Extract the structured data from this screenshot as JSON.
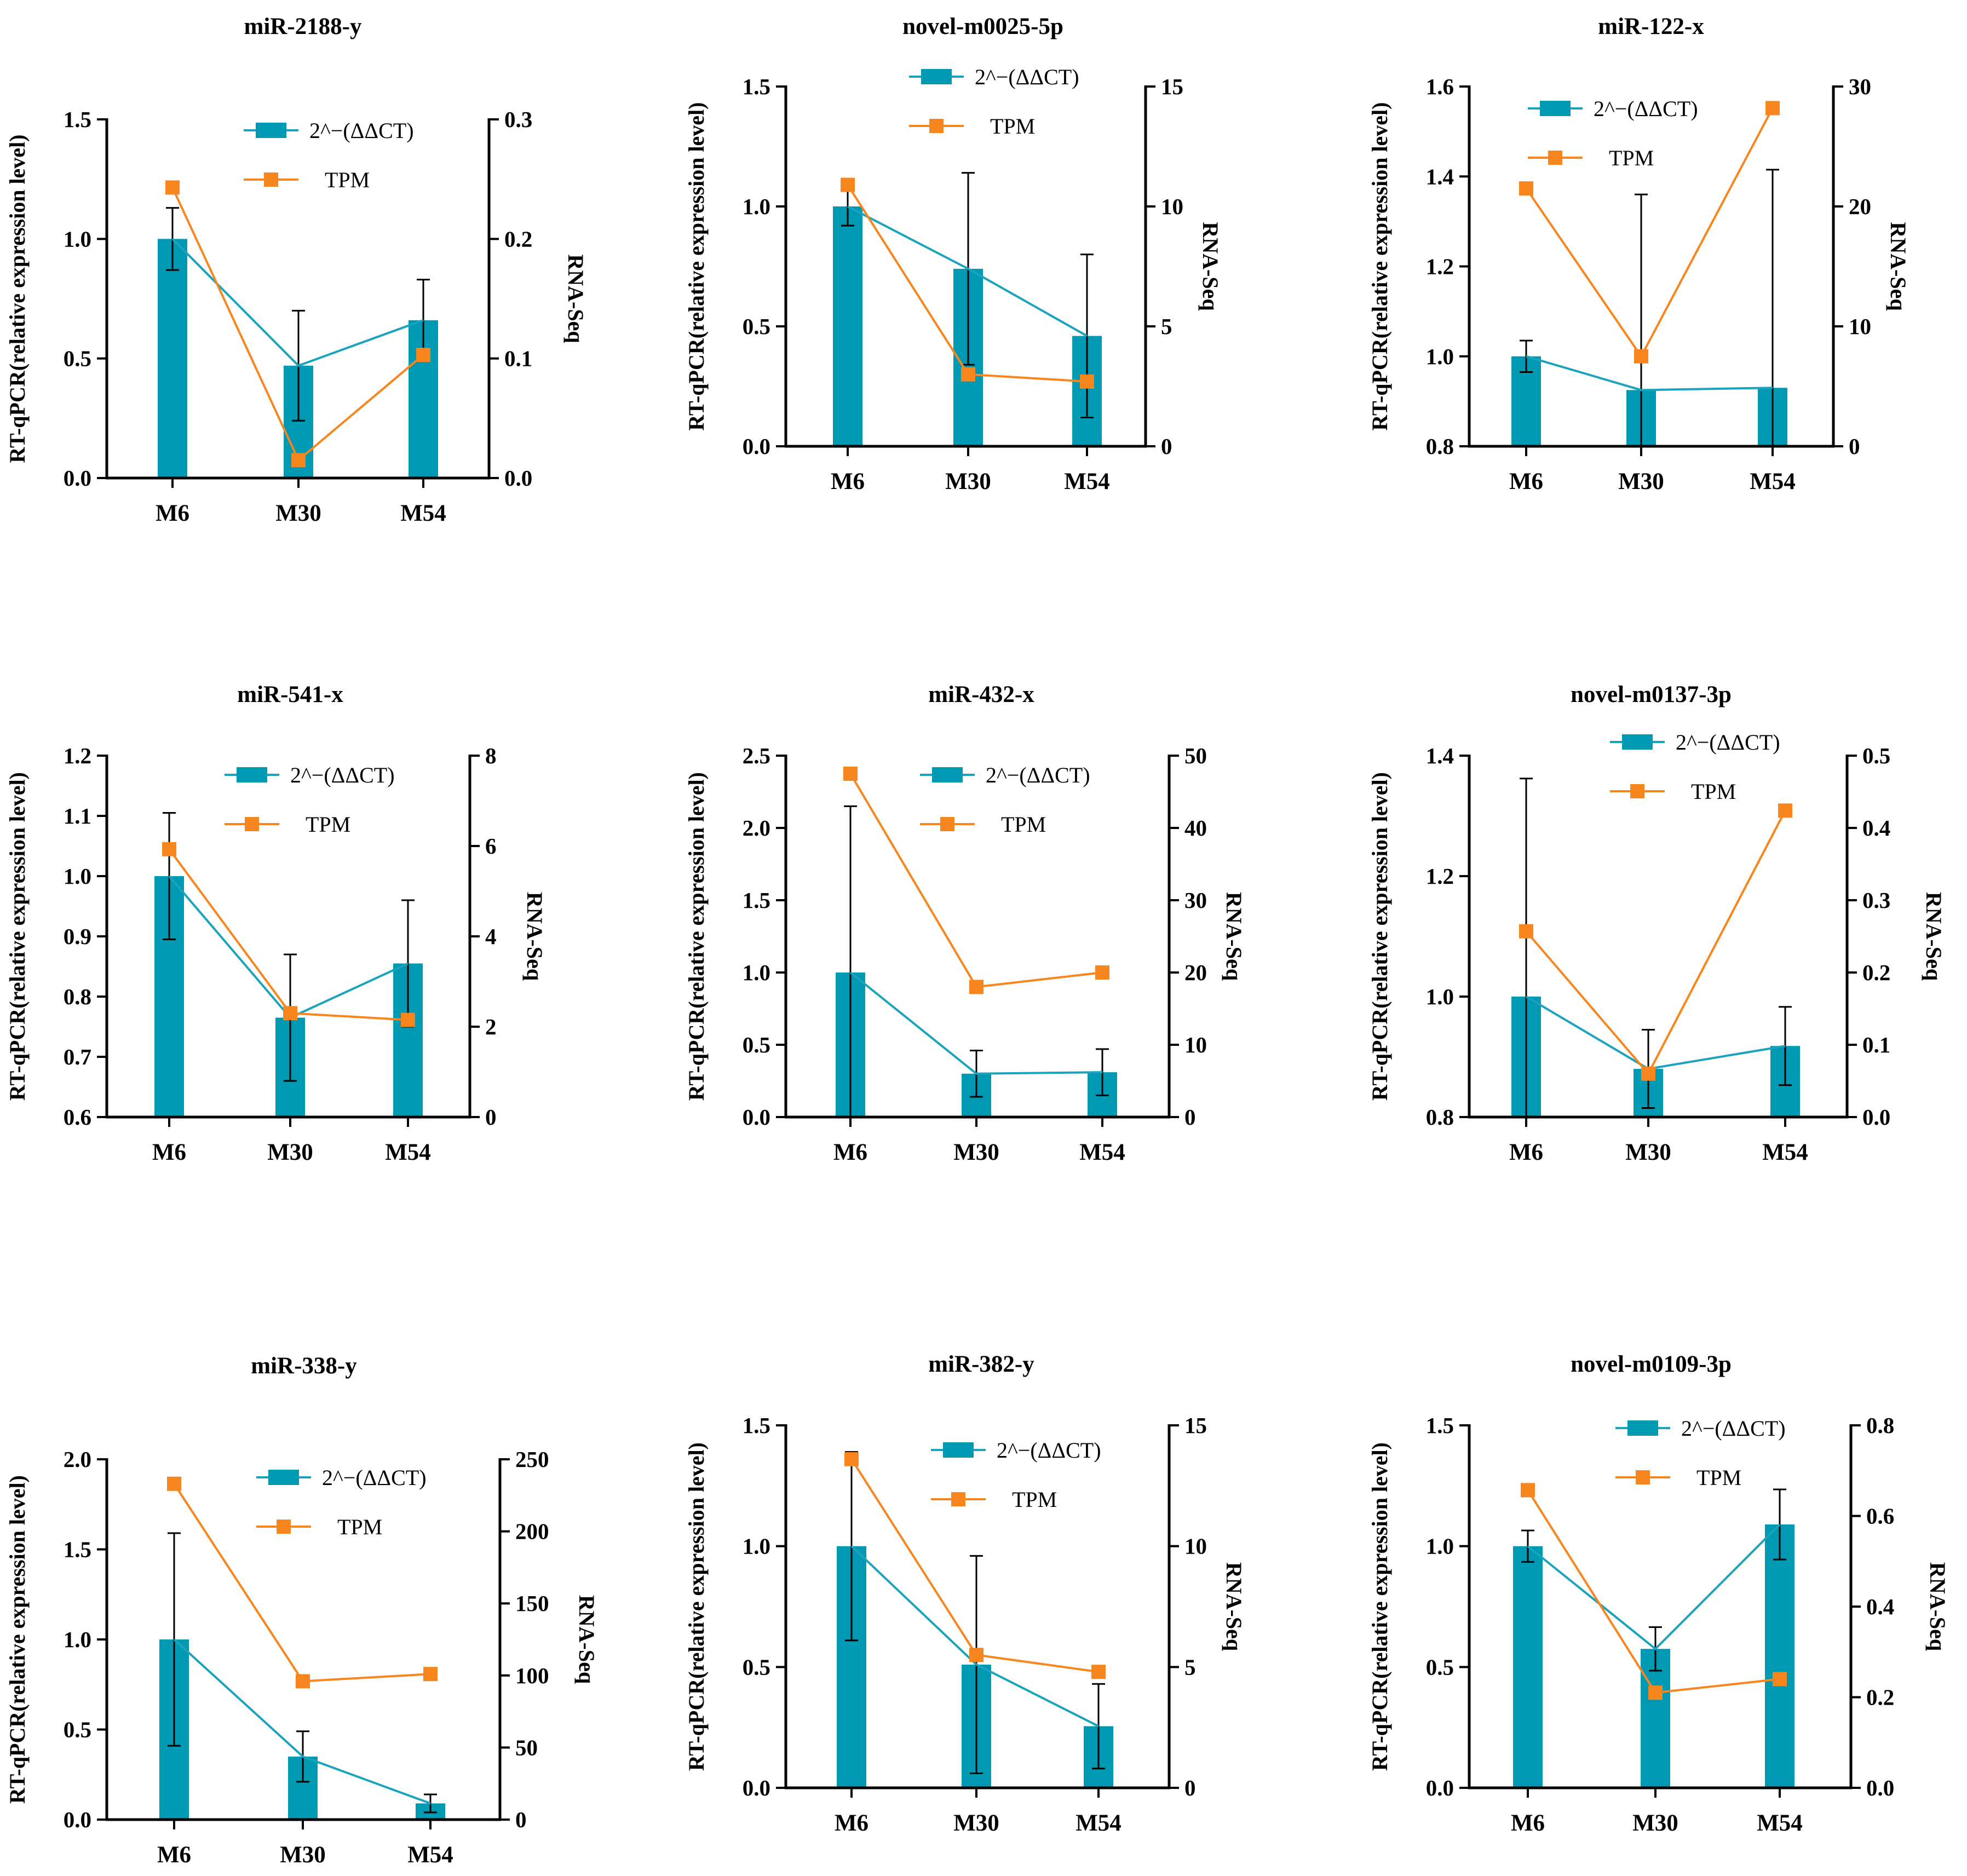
{
  "figure": {
    "left_axis_label": "RT-qPCR(relative expression level)",
    "right_axis_label": "RNA-Seq",
    "legend": [
      "2^−(ΔΔCT)",
      "TPM"
    ]
  },
  "colors": {
    "bar": "#0099B3",
    "line_rtqpcr": "#1BA3BD",
    "tpm": "#F7861F",
    "axis": "#000000"
  },
  "chart_data": [
    {
      "type": "bar+line",
      "title": "miR-2188-y",
      "categories": [
        "M6",
        "M30",
        "M54"
      ],
      "ylabel": "RT-qPCR(relative expression level)",
      "y2label": "RNA-Seq",
      "ylim": [
        0,
        1.5
      ],
      "yticks": [
        0.0,
        0.5,
        1.0,
        1.5
      ],
      "ytick_labels": [
        "0.0",
        "0.5",
        "1.0",
        "1.5"
      ],
      "y2lim": [
        0,
        0.3
      ],
      "y2ticks": [
        0.0,
        0.1,
        0.2,
        0.3
      ],
      "y2tick_labels": [
        "0.0",
        "0.1",
        "0.2",
        "0.3"
      ],
      "series": [
        {
          "name": "2^−(ΔΔCT)",
          "axis": "left",
          "values": [
            1.0,
            0.47,
            0.66
          ],
          "error": [
            0.13,
            0.23,
            0.17
          ]
        },
        {
          "name": "TPM",
          "axis": "right",
          "values": [
            0.243,
            0.015,
            0.103
          ]
        }
      ]
    },
    {
      "type": "bar+line",
      "title": "novel-m0025-5p",
      "categories": [
        "M6",
        "M30",
        "M54"
      ],
      "ylabel": "RT-qPCR(relative expression level)",
      "y2label": "RNA-Seq",
      "ylim": [
        0,
        1.5
      ],
      "yticks": [
        0.0,
        0.5,
        1.0,
        1.5
      ],
      "ytick_labels": [
        "0.0",
        "0.5",
        "1.0",
        "1.5"
      ],
      "y2lim": [
        0,
        15
      ],
      "y2ticks": [
        0,
        5,
        10,
        15
      ],
      "y2tick_labels": [
        "0",
        "5",
        "10",
        "15"
      ],
      "series": [
        {
          "name": "2^−(ΔΔCT)",
          "axis": "left",
          "values": [
            1.0,
            0.74,
            0.46
          ],
          "error": [
            0.08,
            0.4,
            0.34
          ]
        },
        {
          "name": "TPM",
          "axis": "right",
          "values": [
            10.9,
            3.0,
            2.7
          ]
        }
      ]
    },
    {
      "type": "bar+line",
      "title": "miR-122-x",
      "categories": [
        "M6",
        "M30",
        "M54"
      ],
      "ylabel": "RT-qPCR(relative expression level)",
      "y2label": "RNA-Seq",
      "ylim": [
        0.8,
        1.6
      ],
      "yticks": [
        0.8,
        1.0,
        1.2,
        1.4,
        1.6
      ],
      "ytick_labels": [
        "0.8",
        "1.0",
        "1.2",
        "1.4",
        "1.6"
      ],
      "y2lim": [
        0,
        30
      ],
      "y2ticks": [
        0,
        10,
        20,
        30
      ],
      "y2tick_labels": [
        "0",
        "10",
        "20",
        "30"
      ],
      "series": [
        {
          "name": "2^−(ΔΔCT)",
          "axis": "left",
          "values": [
            1.0,
            0.925,
            0.93
          ],
          "error": [
            0.035,
            0.435,
            0.485
          ]
        },
        {
          "name": "TPM",
          "axis": "right",
          "values": [
            21.5,
            7.5,
            28.2
          ]
        }
      ]
    },
    {
      "type": "bar+line",
      "title": "miR-541-x",
      "categories": [
        "M6",
        "M30",
        "M54"
      ],
      "ylabel": "RT-qPCR(relative expression level)",
      "y2label": "RNA-Seq",
      "ylim": [
        0.6,
        1.2
      ],
      "yticks": [
        0.6,
        0.7,
        0.8,
        0.9,
        1.0,
        1.1,
        1.2
      ],
      "ytick_labels": [
        "0.6",
        "0.7",
        "0.8",
        "0.9",
        "1.0",
        "1.1",
        "1.2"
      ],
      "y2lim": [
        0,
        8
      ],
      "y2ticks": [
        0,
        2,
        4,
        6,
        8
      ],
      "y2tick_labels": [
        "0",
        "2",
        "4",
        "6",
        "8"
      ],
      "series": [
        {
          "name": "2^−(ΔΔCT)",
          "axis": "left",
          "values": [
            1.0,
            0.765,
            0.855
          ],
          "error": [
            0.105,
            0.105,
            0.105
          ]
        },
        {
          "name": "TPM",
          "axis": "right",
          "values": [
            5.93,
            2.3,
            2.15
          ]
        }
      ]
    },
    {
      "type": "bar+line",
      "title": "miR-432-x",
      "categories": [
        "M6",
        "M30",
        "M54"
      ],
      "ylabel": "RT-qPCR(relative expression level)",
      "y2label": "RNA-Seq",
      "ylim": [
        0,
        2.5
      ],
      "yticks": [
        0.0,
        0.5,
        1.0,
        1.5,
        2.0,
        2.5
      ],
      "ytick_labels": [
        "0.0",
        "0.5",
        "1.0",
        "1.5",
        "2.0",
        "2.5"
      ],
      "y2lim": [
        0,
        50
      ],
      "y2ticks": [
        0,
        10,
        20,
        30,
        40,
        50
      ],
      "y2tick_labels": [
        "0",
        "10",
        "20",
        "30",
        "40",
        "50"
      ],
      "series": [
        {
          "name": "2^−(ΔΔCT)",
          "axis": "left",
          "values": [
            1.0,
            0.3,
            0.31
          ],
          "error": [
            1.15,
            0.16,
            0.16
          ]
        },
        {
          "name": "TPM",
          "axis": "right",
          "values": [
            47.5,
            18.0,
            20.0
          ]
        }
      ]
    },
    {
      "type": "bar+line",
      "title": "novel-m0137-3p",
      "categories": [
        "M6",
        "M30",
        "M54"
      ],
      "ylabel": "RT-qPCR(relative expression level)",
      "y2label": "RNA-Seq",
      "ylim": [
        0.8,
        1.4
      ],
      "yticks": [
        0.8,
        1.0,
        1.2,
        1.4
      ],
      "ytick_labels": [
        "0.8",
        "1.0",
        "1.2",
        "1.4"
      ],
      "y2lim": [
        0,
        0.5
      ],
      "y2ticks": [
        0.0,
        0.1,
        0.2,
        0.3,
        0.4,
        0.5
      ],
      "y2tick_labels": [
        "0.0",
        "0.1",
        "0.2",
        "0.3",
        "0.4",
        "0.5"
      ],
      "series": [
        {
          "name": "2^−(ΔΔCT)",
          "axis": "left",
          "values": [
            1.0,
            0.88,
            0.918
          ],
          "error": [
            0.362,
            0.065,
            0.065
          ]
        },
        {
          "name": "TPM",
          "axis": "right",
          "values": [
            0.257,
            0.06,
            0.424
          ]
        }
      ]
    },
    {
      "type": "bar+line",
      "title": "miR-338-y",
      "categories": [
        "M6",
        "M30",
        "M54"
      ],
      "ylabel": "RT-qPCR(relative expression level)",
      "y2label": "RNA-Seq",
      "ylim": [
        0,
        2.0
      ],
      "yticks": [
        0.0,
        0.5,
        1.0,
        1.5,
        2.0
      ],
      "ytick_labels": [
        "0.0",
        "0.5",
        "1.0",
        "1.5",
        "2.0"
      ],
      "y2lim": [
        0,
        250
      ],
      "y2ticks": [
        0,
        50,
        100,
        150,
        200,
        250
      ],
      "y2tick_labels": [
        "0",
        "50",
        "100",
        "150",
        "200",
        "250"
      ],
      "series": [
        {
          "name": "2^−(ΔΔCT)",
          "axis": "left",
          "values": [
            1.0,
            0.35,
            0.09
          ],
          "error": [
            0.59,
            0.14,
            0.05
          ]
        },
        {
          "name": "TPM",
          "axis": "right",
          "values": [
            233,
            96,
            101
          ]
        }
      ]
    },
    {
      "type": "bar+line",
      "title": "miR-382-y",
      "categories": [
        "M6",
        "M30",
        "M54"
      ],
      "ylabel": "RT-qPCR(relative expression level)",
      "y2label": "RNA-Seq",
      "ylim": [
        0,
        1.5
      ],
      "yticks": [
        0.0,
        0.5,
        1.0,
        1.5
      ],
      "ytick_labels": [
        "0.0",
        "0.5",
        "1.0",
        "1.5"
      ],
      "y2lim": [
        0,
        15
      ],
      "y2ticks": [
        0,
        5,
        10,
        15
      ],
      "y2tick_labels": [
        "0",
        "5",
        "10",
        "15"
      ],
      "series": [
        {
          "name": "2^−(ΔΔCT)",
          "axis": "left",
          "values": [
            1.0,
            0.51,
            0.255
          ],
          "error": [
            0.39,
            0.45,
            0.175
          ]
        },
        {
          "name": "TPM",
          "axis": "right",
          "values": [
            13.6,
            5.5,
            4.8
          ]
        }
      ]
    },
    {
      "type": "bar+line",
      "title": "novel-m0109-3p",
      "categories": [
        "M6",
        "M30",
        "M54"
      ],
      "ylabel": "RT-qPCR(relative expression level)",
      "y2label": "RNA-Seq",
      "ylim": [
        0,
        1.5
      ],
      "yticks": [
        0.0,
        0.5,
        1.0,
        1.5
      ],
      "ytick_labels": [
        "0.0",
        "0.5",
        "1.0",
        "1.5"
      ],
      "y2lim": [
        0,
        0.8
      ],
      "y2ticks": [
        0.0,
        0.2,
        0.4,
        0.6,
        0.8
      ],
      "y2tick_labels": [
        "0.0",
        "0.2",
        "0.4",
        "0.6",
        "0.8"
      ],
      "series": [
        {
          "name": "2^−(ΔΔCT)",
          "axis": "left",
          "values": [
            1.0,
            0.575,
            1.09
          ],
          "error": [
            0.065,
            0.09,
            0.145
          ]
        },
        {
          "name": "TPM",
          "axis": "right",
          "values": [
            0.657,
            0.21,
            0.24
          ]
        }
      ]
    }
  ]
}
